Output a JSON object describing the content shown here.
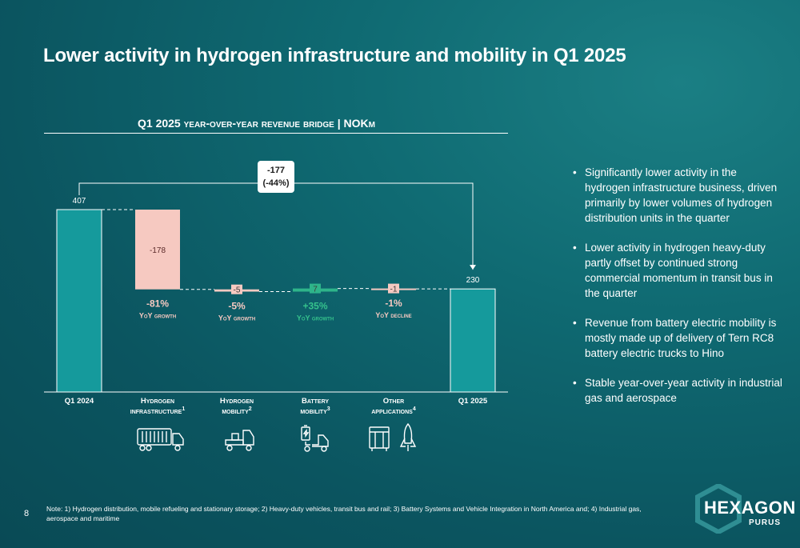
{
  "page": {
    "title": "Lower activity in hydrogen infrastructure and mobility in Q1 2025",
    "page_number": "8",
    "note": "Note: 1) Hydrogen distribution, mobile refueling and stationary storage; 2) Heavy-duty vehicles, transit bus and rail; 3) Battery Systems and Vehicle Integration in North America and; 4) Industrial gas, aerospace and maritime",
    "logo_main": "HEXAGON",
    "logo_sub": "PURUS"
  },
  "bullets": [
    "Significantly lower activity in the hydrogen infrastructure business, driven primarily by lower volumes of hydrogen distribution units in the quarter",
    "Lower activity in hydrogen heavy-duty partly offset by continued strong commercial momentum in transit bus in the quarter",
    "Revenue from battery electric mobility is mostly made up of delivery of Tern RC8 battery electric trucks to Hino",
    "Stable year-over-year activity in industrial gas and aerospace"
  ],
  "colors": {
    "total_bar": "#159a9c",
    "negative_bar": "#f6c9c1",
    "positive_bar": "#2eb48a",
    "negative_text": "#f6c9c1",
    "positive_text": "#35c28c"
  },
  "icons": [
    "hydrogen-trailer-truck-icon",
    "hydrogen-heavy-duty-truck-icon",
    "battery-truck-icon",
    "gas-cylinders-icon",
    "rocket-icon"
  ],
  "chart_data": {
    "type": "waterfall",
    "title": "Q1 2025 year-over-year revenue bridge | NOKm",
    "steps": [
      {
        "category": "Q1 2024",
        "sup": "",
        "kind": "total",
        "value": 407,
        "label": "407"
      },
      {
        "category": "Hydrogen infrastructure",
        "sup": "1",
        "kind": "delta",
        "value": -178,
        "label": "-178",
        "growth": "-81%",
        "growth_caption": "YoY growth"
      },
      {
        "category": "Hydrogen mobility",
        "sup": "2",
        "kind": "delta",
        "value": -5,
        "label": "-5",
        "growth": "-5%",
        "growth_caption": "YoY growth"
      },
      {
        "category": "Battery mobility",
        "sup": "3",
        "kind": "delta",
        "value": 7,
        "label": "7",
        "growth": "+35%",
        "growth_caption": "YoY growth"
      },
      {
        "category": "Other applications",
        "sup": "4",
        "kind": "delta",
        "value": -1,
        "label": "-1",
        "growth": "-1%",
        "growth_caption": "YoY decline"
      },
      {
        "category": "Q1 2025",
        "sup": "",
        "kind": "total",
        "value": 230,
        "label": "230"
      }
    ],
    "total_change": {
      "value": -177,
      "label": "-177",
      "percent": "(-44%)"
    }
  }
}
